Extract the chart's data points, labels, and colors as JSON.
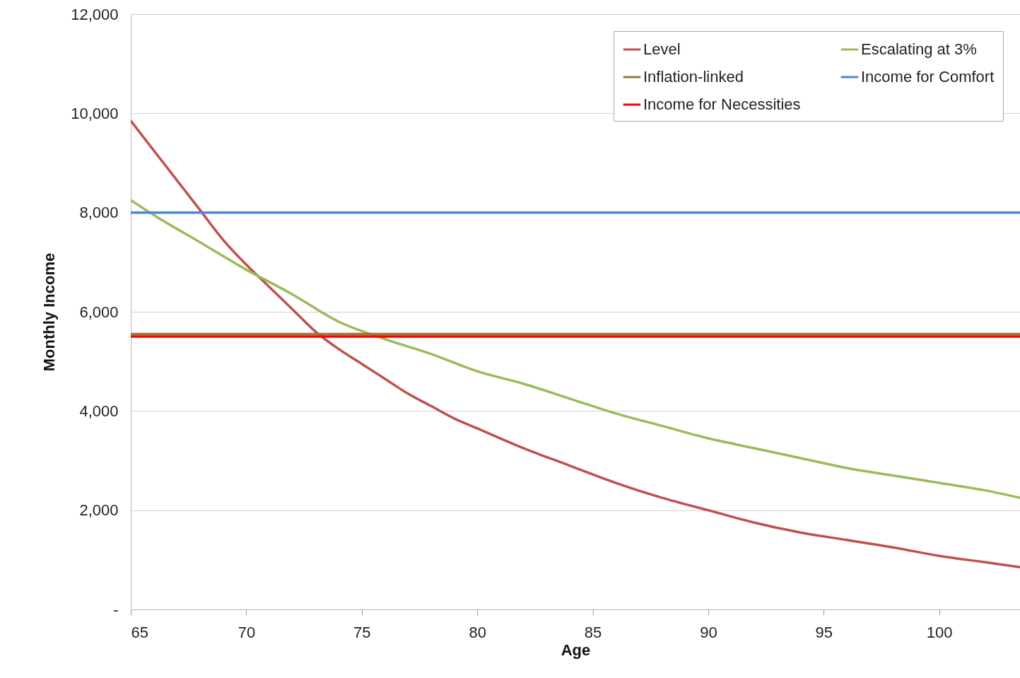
{
  "chart_data": {
    "type": "line",
    "xlabel": "Age",
    "ylabel": "Monthly Income",
    "xlim": [
      65,
      103.5
    ],
    "xticks": [
      65,
      70,
      75,
      80,
      85,
      90,
      95,
      100
    ],
    "ylim": [
      0,
      12000
    ],
    "yticks": [
      {
        "value": 0,
        "label": "-"
      },
      {
        "value": 2000,
        "label": "2,000"
      },
      {
        "value": 4000,
        "label": "4,000"
      },
      {
        "value": 6000,
        "label": "6,000"
      },
      {
        "value": 8000,
        "label": "8,000"
      },
      {
        "value": 10000,
        "label": "10,000"
      },
      {
        "value": 12000,
        "label": "12,000"
      }
    ],
    "grid": "y",
    "legend": "top right",
    "marker": "none",
    "line_style": "solid",
    "series": [
      {
        "name": "Level",
        "color": "#c0504d",
        "x": [
          65,
          66,
          67,
          68,
          69,
          70,
          71,
          72,
          73,
          74,
          75,
          76,
          77,
          78,
          79,
          80,
          82,
          84,
          86,
          88,
          90,
          92,
          94,
          96,
          98,
          100,
          102,
          103.5
        ],
        "values": [
          9850,
          9250,
          8650,
          8050,
          7450,
          6950,
          6500,
          6050,
          5600,
          5250,
          4950,
          4650,
          4350,
          4100,
          3850,
          3650,
          3250,
          2900,
          2550,
          2250,
          2000,
          1750,
          1550,
          1400,
          1250,
          1080,
          950,
          850
        ]
      },
      {
        "name": "Escalating at 3%",
        "color": "#9bbb59",
        "x": [
          65,
          66,
          68,
          70,
          72,
          74,
          76,
          78,
          80,
          82,
          84,
          86,
          88,
          90,
          92,
          94,
          96,
          98,
          100,
          102,
          103.5
        ],
        "values": [
          8250,
          7950,
          7400,
          6850,
          6350,
          5800,
          5450,
          5150,
          4800,
          4550,
          4250,
          3950,
          3700,
          3450,
          3250,
          3050,
          2850,
          2700,
          2550,
          2400,
          2250
        ]
      },
      {
        "name": "Inflation-linked",
        "color": "#8c7f3e",
        "x": [
          65,
          103.5
        ],
        "values": [
          5550,
          5550
        ]
      },
      {
        "name": "Income for Comfort",
        "color": "#4a86e0",
        "x": [
          65,
          103.5
        ],
        "values": [
          8000,
          8000
        ]
      },
      {
        "name": "Income for Necessities",
        "color": "#ff0000",
        "x": [
          65,
          103.5
        ],
        "values": [
          5500,
          5500
        ]
      }
    ]
  }
}
